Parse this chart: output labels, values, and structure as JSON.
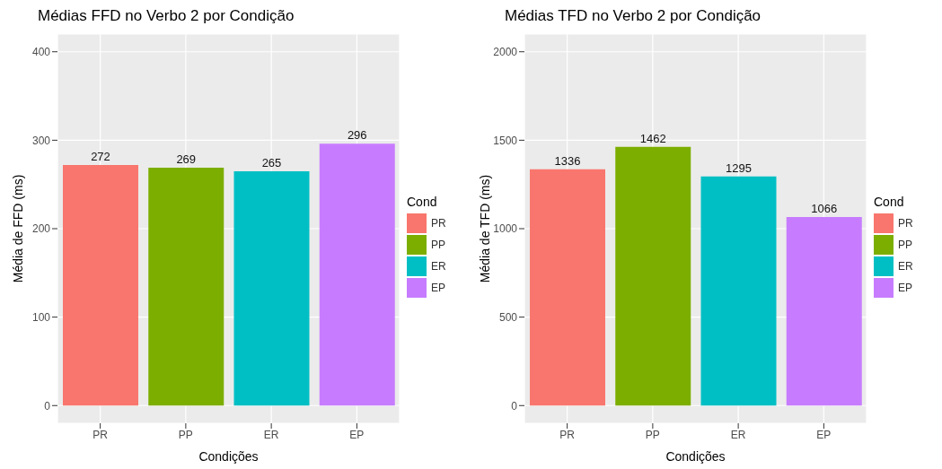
{
  "chart_data": [
    {
      "type": "bar",
      "title": "Médias FFD no Verbo 2 por Condição",
      "xlabel": "Condições",
      "ylabel": "Média de FFD (ms)",
      "legend_title": "Cond",
      "categories": [
        "PR",
        "PP",
        "ER",
        "EP"
      ],
      "stacked": true,
      "series": [
        {
          "name": "PR",
          "color": "#f8766d",
          "values": [
            272,
            null,
            null,
            null
          ]
        },
        {
          "name": "PP",
          "color": "#7cae00",
          "values": [
            null,
            269,
            null,
            null
          ]
        },
        {
          "name": "ER",
          "color": "#00bfc4",
          "values": [
            null,
            null,
            265,
            null
          ]
        },
        {
          "name": "EP",
          "color": "#c77cff",
          "values": [
            null,
            null,
            null,
            296
          ]
        }
      ],
      "ylim": [
        -20,
        420
      ],
      "yticks": [
        0,
        100,
        200,
        300,
        400
      ],
      "grid": true,
      "legend": "right",
      "data_labels": true
    },
    {
      "type": "bar",
      "title": "Médias TFD no Verbo 2 por Condição",
      "xlabel": "Condições",
      "ylabel": "Média de TFD (ms)",
      "legend_title": "Cond",
      "categories": [
        "PR",
        "PP",
        "ER",
        "EP"
      ],
      "stacked": true,
      "series": [
        {
          "name": "PR",
          "color": "#f8766d",
          "values": [
            1336,
            null,
            null,
            null
          ]
        },
        {
          "name": "PP",
          "color": "#7cae00",
          "values": [
            null,
            1462,
            null,
            null
          ]
        },
        {
          "name": "ER",
          "color": "#00bfc4",
          "values": [
            null,
            null,
            1295,
            null
          ]
        },
        {
          "name": "EP",
          "color": "#c77cff",
          "values": [
            null,
            null,
            null,
            1066
          ]
        }
      ],
      "ylim": [
        -100,
        2100
      ],
      "yticks": [
        0,
        500,
        1000,
        1500,
        2000
      ],
      "grid": true,
      "legend": "right",
      "data_labels": true
    }
  ]
}
